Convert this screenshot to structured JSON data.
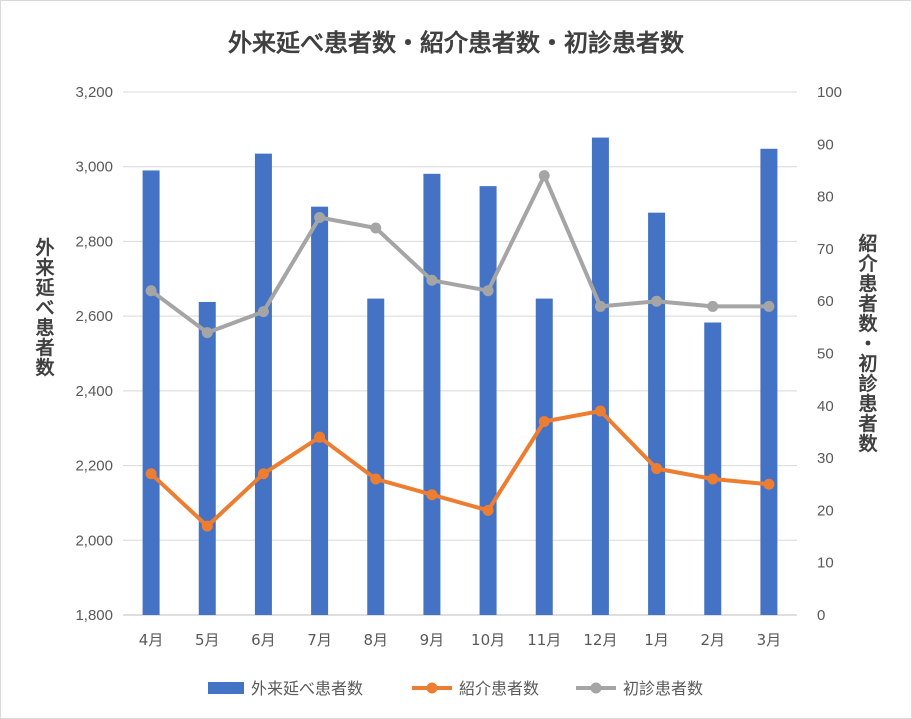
{
  "chart_data": {
    "type": "bar",
    "title": "外来延べ患者数・紹介患者数・初診患者数",
    "categories": [
      "4月",
      "5月",
      "6月",
      "7月",
      "8月",
      "9月",
      "10月",
      "11月",
      "12月",
      "1月",
      "2月",
      "3月"
    ],
    "y_left": {
      "label": "外来延べ患者数",
      "range": [
        1800,
        3200
      ],
      "ticks": [
        "1,800",
        "2,000",
        "2,200",
        "2,400",
        "2,600",
        "2,800",
        "3,000",
        "3,200"
      ]
    },
    "y_right": {
      "label": "紹介患者数・初診患者数",
      "range": [
        0,
        100
      ],
      "ticks": [
        "0",
        "10",
        "20",
        "30",
        "40",
        "50",
        "60",
        "70",
        "80",
        "90",
        "100"
      ]
    },
    "series": [
      {
        "name": "外来延べ患者数",
        "kind": "bar",
        "axis": "left",
        "color": "#4472c4",
        "values": [
          2990,
          2638,
          3035,
          2893,
          2647,
          2981,
          2948,
          2647,
          3078,
          2877,
          2583,
          3048
        ]
      },
      {
        "name": "紹介患者数",
        "kind": "line",
        "axis": "right",
        "color": "#ed7d31",
        "values": [
          27,
          17,
          27,
          34,
          26,
          23,
          20,
          37,
          39,
          28,
          26,
          25
        ]
      },
      {
        "name": "初診患者数",
        "kind": "line",
        "axis": "right",
        "color": "#a5a5a5",
        "values": [
          62,
          54,
          58,
          76,
          74,
          64,
          62,
          84,
          59,
          60,
          59,
          59
        ]
      }
    ],
    "grid": true,
    "legend_position": "bottom"
  }
}
